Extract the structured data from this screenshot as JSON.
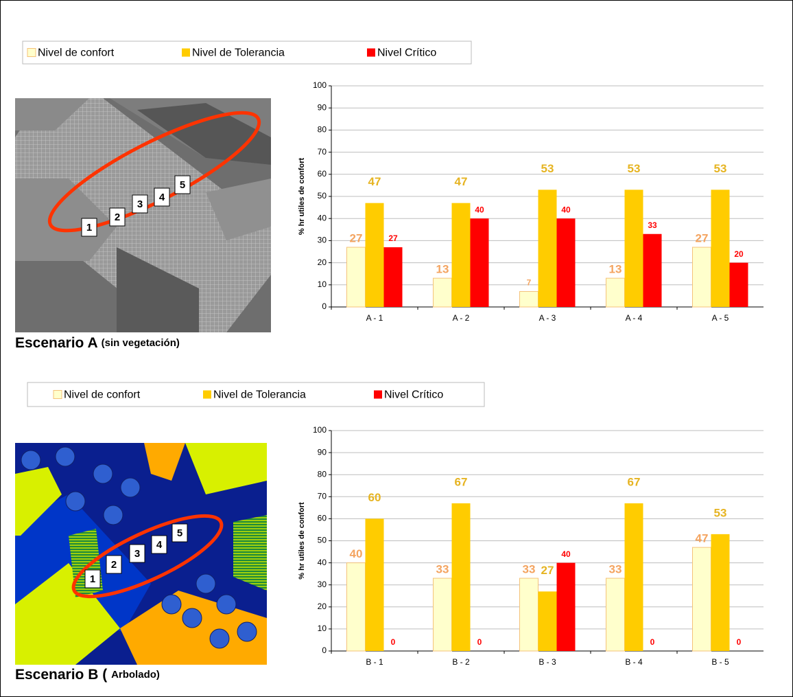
{
  "chart_data": [
    {
      "type": "bar",
      "caption": "Escenario A",
      "caption_note": "(sin vegetación)",
      "y_label": "% hr utiles de confort",
      "markers": [
        "1",
        "2",
        "3",
        "4",
        "5"
      ],
      "categories": [
        "A - 1",
        "A - 2",
        "A - 3",
        "A - 4",
        "A - 5"
      ],
      "series": [
        {
          "name": "Nivel de confort",
          "color": "#ffffcc",
          "label_color": "#f4a460",
          "values": [
            27,
            13,
            7,
            13,
            27
          ]
        },
        {
          "name": "Nivel de Tolerancia",
          "color": "#ffcc00",
          "label_color": "#e6b422",
          "values": [
            47,
            47,
            53,
            53,
            53
          ]
        },
        {
          "name": "Nivel Crítico",
          "color": "#ff0000",
          "label_color": "#ff0000",
          "values": [
            27,
            40,
            40,
            33,
            20
          ]
        }
      ],
      "ylim": [
        0,
        100
      ],
      "yticks": [
        0,
        10,
        20,
        30,
        40,
        50,
        60,
        70,
        80,
        90,
        100
      ],
      "grid": true
    },
    {
      "type": "bar",
      "caption": "Escenario B (",
      "caption_note": "Arbolado)",
      "y_label": "% hr utiles de confort",
      "markers": [
        "1",
        "2",
        "3",
        "4",
        "5"
      ],
      "categories": [
        "B - 1",
        "B - 2",
        "B - 3",
        "B - 4",
        "B - 5"
      ],
      "series": [
        {
          "name": "Nivel de confort",
          "color": "#ffffcc",
          "label_color": "#f4a460",
          "values": [
            40,
            33,
            33,
            33,
            47
          ]
        },
        {
          "name": "Nivel de Tolerancia",
          "color": "#ffcc00",
          "label_color": "#e6b422",
          "values": [
            60,
            67,
            27,
            67,
            53
          ]
        },
        {
          "name": "Nivel Crítico",
          "color": "#ff0000",
          "label_color": "#ff0000",
          "values": [
            0,
            0,
            40,
            0,
            0
          ]
        }
      ],
      "ylim": [
        0,
        100
      ],
      "yticks": [
        0,
        10,
        20,
        30,
        40,
        50,
        60,
        70,
        80,
        90,
        100
      ],
      "grid": true
    }
  ]
}
